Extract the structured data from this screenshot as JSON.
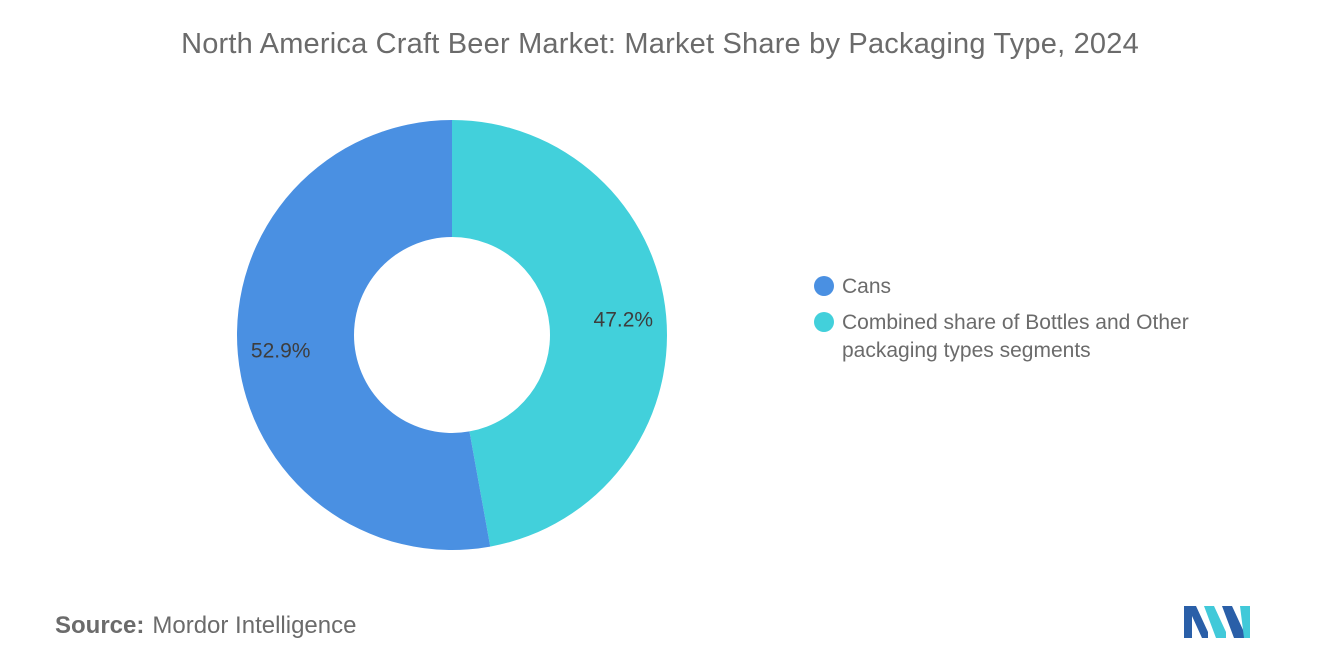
{
  "title": "North America Craft Beer Market: Market Share by Packaging Type, 2024",
  "source": {
    "label": "Source:",
    "value": "Mordor Intelligence"
  },
  "logo": {
    "icon": "mordor-intelligence-logo",
    "colors": [
      "#2a5fa8",
      "#41c9d9"
    ]
  },
  "chart_data": {
    "type": "pie",
    "donut": true,
    "title": "North America Craft Beer Market: Market Share by Packaging Type, 2024",
    "legend_position": "right",
    "slices": [
      {
        "name": "Cans",
        "value": 52.9,
        "label": "52.9%",
        "color": "#4a90e2"
      },
      {
        "name": "Combined share of Bottles and Other packaging types segments",
        "value": 47.2,
        "label": "47.2%",
        "color": "#42d0db"
      }
    ]
  }
}
